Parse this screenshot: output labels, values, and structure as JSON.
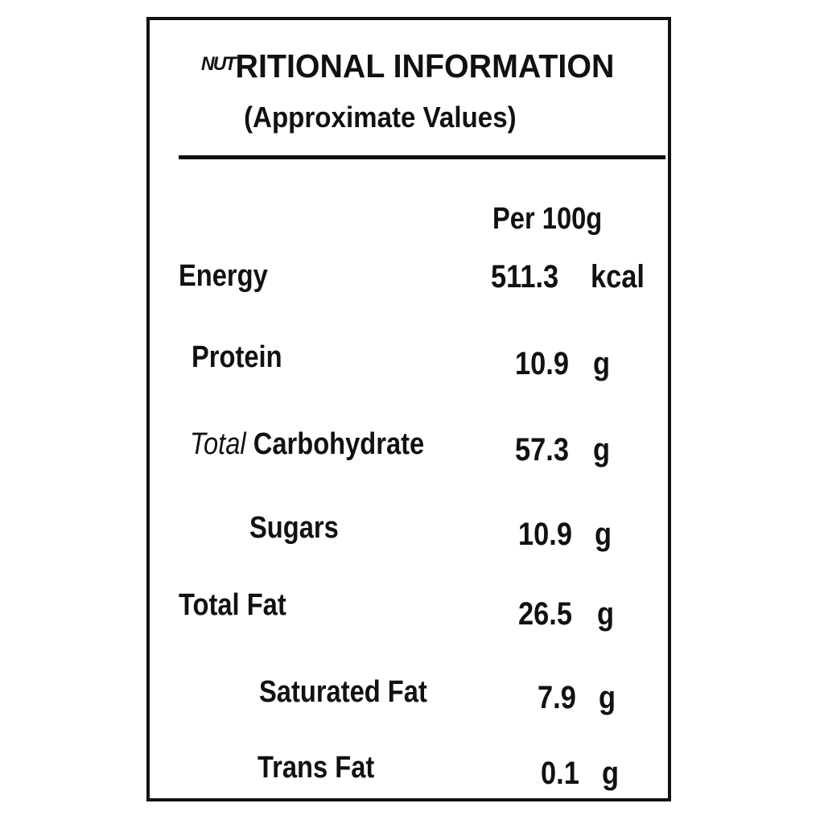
{
  "label": {
    "title_prefix": "NUT",
    "title_rest": "RITIONAL INFORMATION",
    "subtitle": "(Approximate Values)",
    "column_header": "Per 100g",
    "rows": [
      {
        "name": "Energy",
        "value": "511.3",
        "unit": "kcal"
      },
      {
        "name": "Protein",
        "value": "10.9",
        "unit": "g"
      },
      {
        "name_prefix": "Total",
        "name": "Carbohydrate",
        "value": "57.3",
        "unit": "g"
      },
      {
        "name": "Sugars",
        "value": "10.9",
        "unit": "g"
      },
      {
        "name": "Total Fat",
        "value": "26.5",
        "unit": "g"
      },
      {
        "name": "Saturated Fat",
        "value": "7.9",
        "unit": "g"
      },
      {
        "name": "Trans Fat",
        "value": "0.1",
        "unit": "g"
      }
    ]
  }
}
